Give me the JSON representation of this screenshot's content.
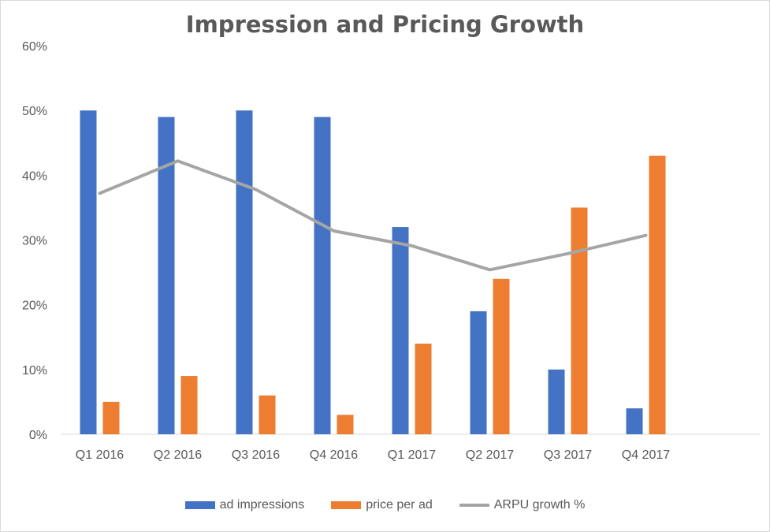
{
  "chart_data": {
    "type": "bar",
    "title": "Impression and Pricing Growth",
    "categories": [
      "Q1 2016",
      "Q2 2016",
      "Q3 2016",
      "Q4 2016",
      "Q1 2017",
      "Q2 2017",
      "Q3 2017",
      "Q4 2017"
    ],
    "ylim": [
      0,
      60
    ],
    "yticks": [
      0,
      10,
      20,
      30,
      40,
      50,
      60
    ],
    "ytick_labels": [
      "0%",
      "10%",
      "20%",
      "30%",
      "40%",
      "50%",
      "60%"
    ],
    "y_unit": "%",
    "grid": false,
    "legend_position": "bottom",
    "series": [
      {
        "name": "ad impressions",
        "kind": "bar",
        "color": "#4472c4",
        "values": [
          50,
          49,
          50,
          49,
          32,
          19,
          10,
          4
        ]
      },
      {
        "name": "price per ad",
        "kind": "bar",
        "color": "#ed7d31",
        "values": [
          5,
          9,
          6,
          3,
          14,
          24,
          35,
          43
        ]
      },
      {
        "name": "ARPU growth %",
        "kind": "line",
        "color": "#a5a5a5",
        "values": [
          37.2,
          42.2,
          37.8,
          31.4,
          29.1,
          25.4,
          27.9,
          30.7
        ]
      }
    ]
  }
}
